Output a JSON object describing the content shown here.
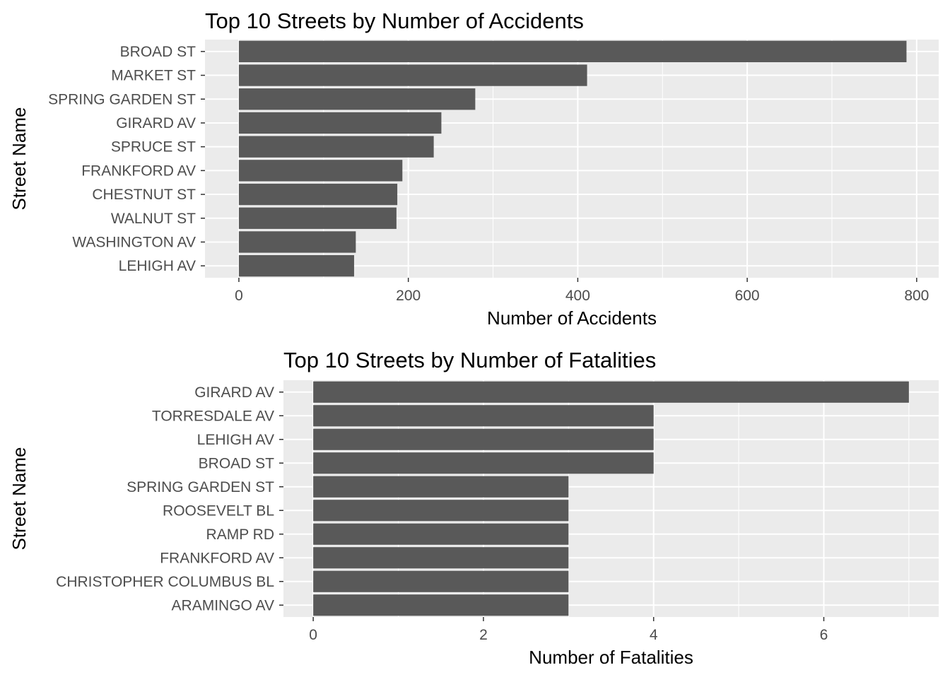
{
  "chart_data": [
    {
      "type": "bar",
      "orientation": "horizontal",
      "title": "Top 10 Streets by Number of Accidents",
      "xlabel": "Number of Accidents",
      "ylabel": "Street Name",
      "categories": [
        "BROAD ST",
        "MARKET ST",
        "SPRING GARDEN ST",
        "GIRARD AV",
        "SPRUCE ST",
        "FRANKFORD AV",
        "CHESTNUT ST",
        "WALNUT ST",
        "WASHINGTON AV",
        "LEHIGH AV"
      ],
      "values": [
        788,
        411,
        279,
        239,
        230,
        193,
        187,
        186,
        138,
        136
      ],
      "xlim": [
        -40,
        826
      ],
      "x_ticks": [
        0,
        200,
        400,
        600,
        800
      ],
      "x_tick_labels": [
        "0",
        "200",
        "400",
        "600",
        "800"
      ],
      "grid": true,
      "bar_color": "#595959",
      "panel_color": "#ebebeb"
    },
    {
      "type": "bar",
      "orientation": "horizontal",
      "title": "Top 10 Streets by Number of Fatalities",
      "xlabel": "Number of Fatalities",
      "ylabel": "Street Name",
      "categories": [
        "GIRARD AV",
        "TORRESDALE AV",
        "LEHIGH AV",
        "BROAD ST",
        "SPRING GARDEN ST",
        "ROOSEVELT BL",
        "RAMP RD",
        "FRANKFORD AV",
        "CHRISTOPHER COLUMBUS BL",
        "ARAMINGO AV"
      ],
      "values": [
        7,
        4,
        4,
        4,
        3,
        3,
        3,
        3,
        3,
        3
      ],
      "xlim": [
        -0.35,
        7.35
      ],
      "x_ticks": [
        0,
        2,
        4,
        6
      ],
      "x_tick_labels": [
        "0",
        "2",
        "4",
        "6"
      ],
      "grid": true,
      "bar_color": "#595959",
      "panel_color": "#ebebeb"
    }
  ]
}
